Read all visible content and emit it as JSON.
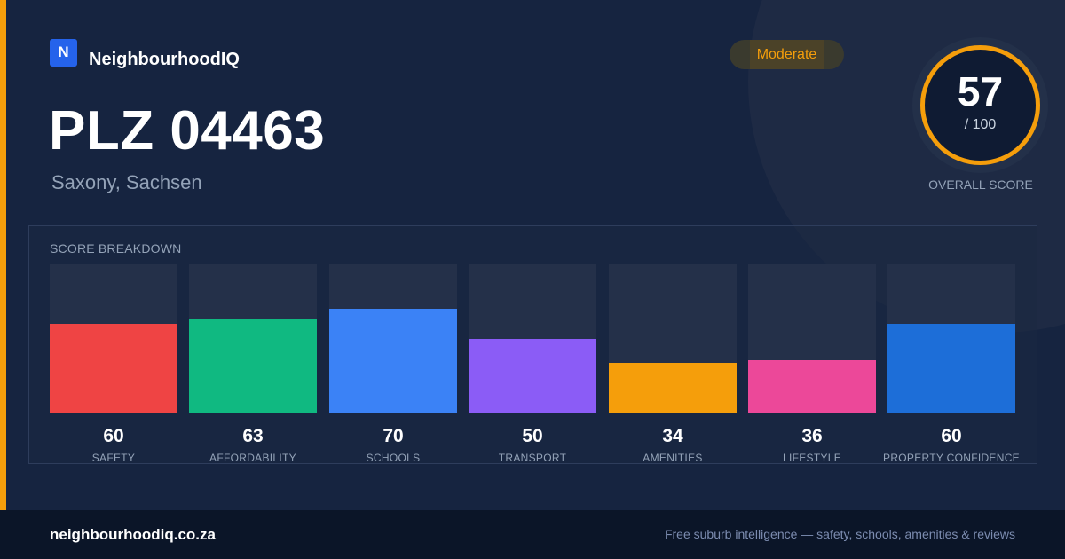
{
  "brand": {
    "logo_letter": "N",
    "name": "NeighbourhoodIQ"
  },
  "header": {
    "title": "PLZ 04463",
    "subtitle": "Saxony, Sachsen"
  },
  "badge": {
    "label": "Moderate",
    "color": "#f59e0b"
  },
  "overall": {
    "value": "57",
    "max": "/ 100",
    "label": "OVERALL SCORE",
    "ring_color": "#f59e0b"
  },
  "breakdown": {
    "title": "SCORE BREAKDOWN",
    "max_score": 100,
    "items": [
      {
        "label": "SAFETY",
        "value": 60,
        "display": "60",
        "color": "#ef4444"
      },
      {
        "label": "AFFORDABILITY",
        "value": 63,
        "display": "63",
        "color": "#10b981"
      },
      {
        "label": "SCHOOLS",
        "value": 70,
        "display": "70",
        "color": "#3b82f6"
      },
      {
        "label": "TRANSPORT",
        "value": 50,
        "display": "50",
        "color": "#8b5cf6"
      },
      {
        "label": "AMENITIES",
        "value": 34,
        "display": "34",
        "color": "#f59e0b"
      },
      {
        "label": "LIFESTYLE",
        "value": 36,
        "display": "36",
        "color": "#ec4899"
      },
      {
        "label": "PROPERTY CONFIDENCE",
        "value": 60,
        "display": "60",
        "color": "#1d6ed8"
      }
    ]
  },
  "footer": {
    "url": "neighbourhoodiq.co.za",
    "tagline": "Free suburb intelligence — safety, schools, amenities & reviews"
  }
}
